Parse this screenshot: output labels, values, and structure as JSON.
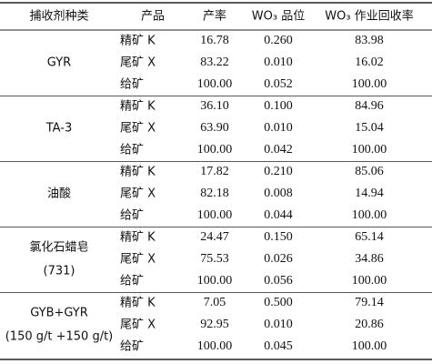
{
  "table": {
    "header": [
      "捕收剂种类",
      "产品",
      "产率",
      "WO₃ 品位",
      "WO₃ 作业回收率"
    ],
    "groups": [
      {
        "name": [
          "GYR"
        ],
        "rows": [
          [
            "精矿 K",
            "16.78",
            "0.260",
            "83.98"
          ],
          [
            "尾矿 X",
            "83.22",
            "0.010",
            "16.02"
          ],
          [
            "给矿",
            "100.00",
            "0.052",
            "100.00"
          ]
        ]
      },
      {
        "name": [
          "TA-3"
        ],
        "rows": [
          [
            "精矿 K",
            "36.10",
            "0.100",
            "84.96"
          ],
          [
            "尾矿 X",
            "63.90",
            "0.010",
            "15.04"
          ],
          [
            "给矿",
            "100.00",
            "0.042",
            "100.00"
          ]
        ]
      },
      {
        "name": [
          "油酸"
        ],
        "rows": [
          [
            "精矿 K",
            "17.82",
            "0.210",
            "85.06"
          ],
          [
            "尾矿 X",
            "82.18",
            "0.008",
            "14.94"
          ],
          [
            "给矿",
            "100.00",
            "0.044",
            "100.00"
          ]
        ]
      },
      {
        "name": [
          "氯化石蜡皂",
          "(731)"
        ],
        "rows": [
          [
            "精矿 K",
            "24.47",
            "0.150",
            "65.14"
          ],
          [
            "尾矿 X",
            "75.53",
            "0.026",
            "34.86"
          ],
          [
            "给矿",
            "100.00",
            "0.056",
            "100.00"
          ]
        ]
      },
      {
        "name": [
          "GYB+GYR",
          "(150 g/t +150 g/t)"
        ],
        "rows": [
          [
            "精矿 K",
            "7.05",
            "0.500",
            "79.14"
          ],
          [
            "尾矿 X",
            "92.95",
            "0.010",
            "20.86"
          ],
          [
            "给矿",
            "100.00",
            "0.045",
            "100.00"
          ]
        ]
      }
    ]
  }
}
